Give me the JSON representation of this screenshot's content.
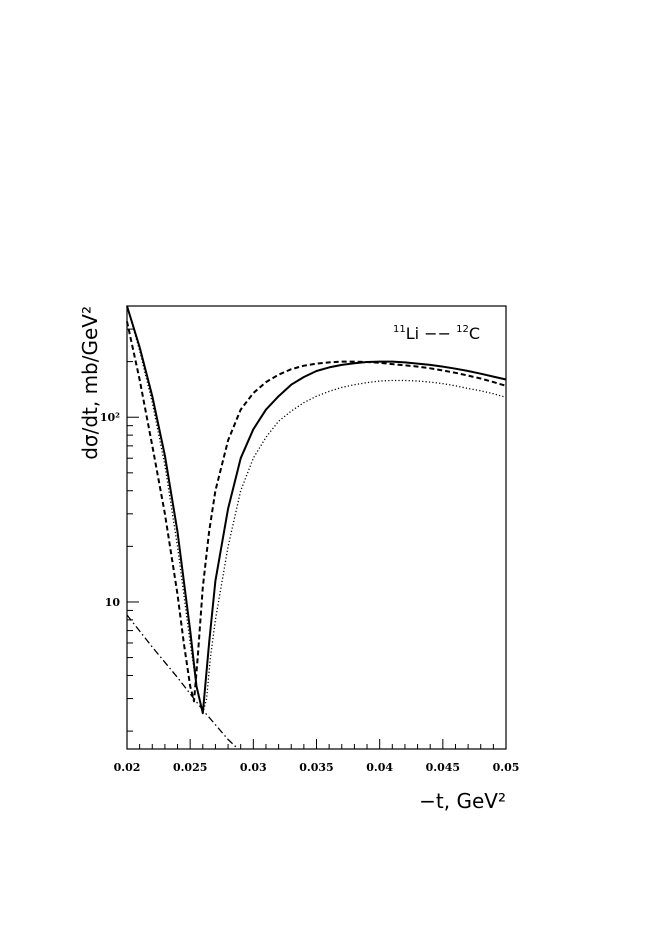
{
  "chart_data": {
    "type": "line",
    "xlabel": "−t, GeV²",
    "ylabel": "dσ/dt, mb/GeV²",
    "xlim": [
      0.02,
      0.05
    ],
    "ylim": [
      1.6,
      400
    ],
    "yscale": "log",
    "grid": false,
    "x_ticks": [
      "0.02",
      "0.025",
      "0.03",
      "0.035",
      "0.04",
      "0.045",
      "0.05"
    ],
    "y_ticks": [
      "10",
      "10²"
    ],
    "annotation": {
      "nucleus1_mass": "11",
      "nucleus1": "Li",
      "separator": " −− ",
      "nucleus2_mass": "12",
      "nucleus2": "C"
    },
    "series": [
      {
        "style": "solid",
        "x": [
          0.02,
          0.021,
          0.022,
          0.023,
          0.024,
          0.025,
          0.0255,
          0.026,
          0.0265,
          0.027,
          0.028,
          0.029,
          0.03,
          0.031,
          0.032,
          0.033,
          0.034,
          0.035,
          0.036,
          0.037,
          0.038,
          0.039,
          0.04,
          0.041,
          0.042,
          0.043,
          0.044,
          0.045,
          0.046,
          0.047,
          0.048,
          0.049,
          0.05
        ],
        "y": [
          400,
          240,
          130,
          62,
          24,
          7,
          3.5,
          2.5,
          6,
          13,
          32,
          60,
          86,
          110,
          130,
          150,
          165,
          178,
          186,
          192,
          196,
          199,
          200,
          200,
          198,
          195,
          192,
          188,
          183,
          178,
          172,
          166,
          160
        ]
      },
      {
        "style": "dashed",
        "x": [
          0.02,
          0.021,
          0.022,
          0.023,
          0.024,
          0.0245,
          0.025,
          0.0253,
          0.0256,
          0.026,
          0.0265,
          0.027,
          0.028,
          0.029,
          0.03,
          0.031,
          0.032,
          0.033,
          0.034,
          0.035,
          0.036,
          0.037,
          0.038,
          0.039,
          0.04,
          0.041,
          0.042,
          0.043,
          0.044,
          0.045,
          0.046,
          0.047,
          0.048,
          0.049,
          0.05
        ],
        "y": [
          330,
          160,
          70,
          30,
          11,
          6,
          3.5,
          2.9,
          5,
          12,
          24,
          40,
          75,
          110,
          135,
          155,
          170,
          182,
          190,
          195,
          198,
          200,
          200,
          199,
          197,
          194,
          191,
          188,
          184,
          179,
          174,
          168,
          162,
          155,
          148
        ]
      },
      {
        "style": "dotted",
        "x": [
          0.02,
          0.021,
          0.022,
          0.023,
          0.024,
          0.025,
          0.0255,
          0.026,
          0.0263,
          0.0266,
          0.027,
          0.028,
          0.029,
          0.03,
          0.031,
          0.032,
          0.033,
          0.034,
          0.035,
          0.036,
          0.037,
          0.038,
          0.039,
          0.04,
          0.041,
          0.042,
          0.043,
          0.044,
          0.045,
          0.046,
          0.047,
          0.048,
          0.049,
          0.05
        ],
        "y": [
          400,
          230,
          120,
          55,
          20,
          6,
          3.5,
          2.5,
          3,
          5,
          8,
          20,
          40,
          60,
          78,
          95,
          108,
          120,
          130,
          138,
          145,
          150,
          154,
          157,
          158,
          158,
          157,
          155,
          152,
          148,
          143,
          139,
          134,
          128
        ]
      },
      {
        "style": "dash-dot",
        "x": [
          0.02,
          0.022,
          0.024,
          0.026,
          0.028,
          0.0288
        ],
        "y": [
          8.5,
          5.7,
          3.9,
          2.6,
          1.8,
          1.6
        ]
      }
    ]
  }
}
